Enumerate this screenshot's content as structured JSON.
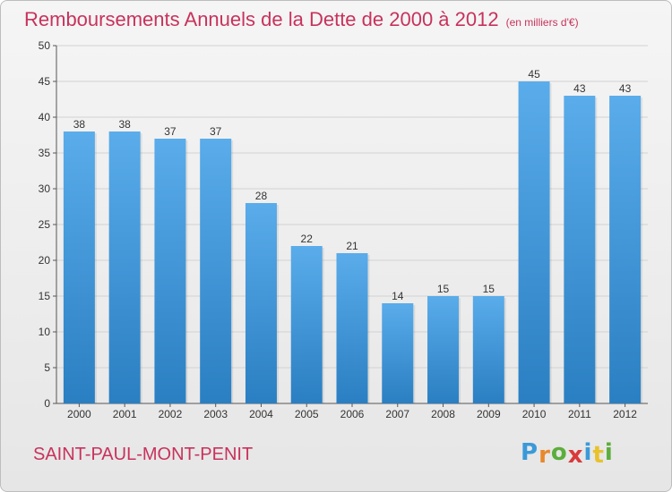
{
  "title": "Remboursements Annuels de la Dette de 2000 à 2012",
  "unit_note": "(en milliers d'€)",
  "commune": "SAINT-PAUL-MONT-PENIT",
  "logo": {
    "letters": [
      "P",
      "r",
      "o",
      "x",
      "i",
      "t",
      "i"
    ],
    "colors": [
      "#3a9ad9",
      "#e8892c",
      "#5cae3b",
      "#d93a3a",
      "#3a9ad9",
      "#e8c22c",
      "#5cae3b"
    ]
  },
  "colors": {
    "bar_light": "#5aacea",
    "bar_dark": "#2a7fc2",
    "accent": "#c8325c"
  },
  "chart_data": {
    "type": "bar",
    "categories": [
      "2000",
      "2001",
      "2002",
      "2003",
      "2004",
      "2005",
      "2006",
      "2007",
      "2008",
      "2009",
      "2010",
      "2011",
      "2012"
    ],
    "values": [
      38,
      38,
      37,
      37,
      28,
      22,
      21,
      14,
      15,
      15,
      45,
      43,
      43
    ],
    "yticks": [
      0,
      5,
      10,
      15,
      20,
      25,
      30,
      35,
      40,
      45,
      50
    ],
    "ylim": [
      0,
      50
    ],
    "grid": true
  }
}
